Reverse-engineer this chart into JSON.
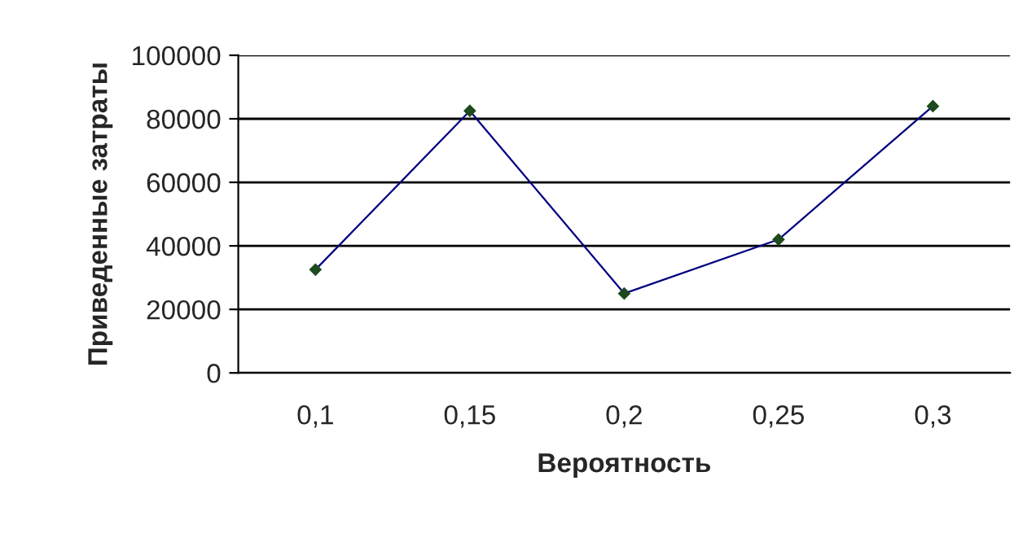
{
  "chart_data": {
    "type": "line",
    "xlabel": "Вероятность",
    "ylabel": "Приведенные затраты",
    "categories": [
      "0,1",
      "0,15",
      "0,2",
      "0,25",
      "0,3"
    ],
    "series": [
      {
        "color": "#000080",
        "values": [
          32500,
          82500,
          25000,
          42000,
          84000
        ]
      }
    ],
    "ylim": [
      0,
      100000
    ],
    "yticks": [
      0,
      20000,
      40000,
      60000,
      80000,
      100000
    ],
    "grid": "y",
    "marker": "diamond",
    "line_style": "solid",
    "legend": false
  }
}
